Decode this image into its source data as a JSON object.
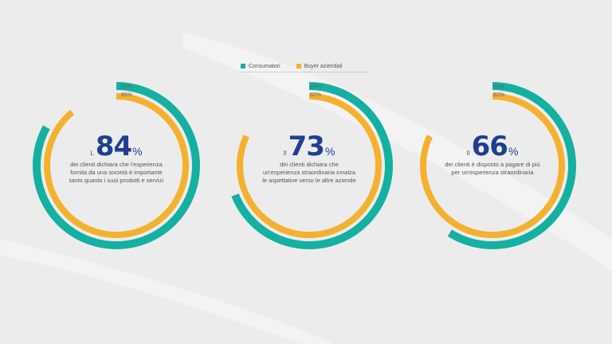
{
  "colors": {
    "teal": "#14b0a2",
    "orange": "#f4b12e",
    "blue": "#1f3f8f"
  },
  "legend": {
    "consumers": "Consumatori",
    "business": "Buyer aziendali"
  },
  "chart_data": [
    {
      "type": "radial-bar",
      "big_value": "84",
      "prefix": "L",
      "percent_sign": "%",
      "description": "dei clienti dichiara che l'esperienza fornita da una società è importante tanto quanto i suoi prodotti e servizi",
      "series": [
        {
          "name": "Consumatori",
          "value": 83,
          "label": "83%"
        },
        {
          "name": "Buyer aziendali",
          "value": 89,
          "label": "89%"
        }
      ]
    },
    {
      "type": "radial-bar",
      "big_value": "73",
      "prefix": "Il",
      "percent_sign": "%",
      "description": "dei clienti dichiara che un'esperienza straordinaria innalza le aspettative verso le altre aziende",
      "series": [
        {
          "name": "Consumatori",
          "value": 69,
          "label": "69%"
        },
        {
          "name": "Buyer aziendali",
          "value": 82,
          "label": "82%"
        }
      ]
    },
    {
      "type": "radial-bar",
      "big_value": "66",
      "prefix": "Il",
      "percent_sign": "%",
      "description": "dei clienti è disposto a pagare di più per un'esperienza straordinaria",
      "series": [
        {
          "name": "Consumatori",
          "value": 59,
          "label": "59%"
        },
        {
          "name": "Buyer aziendali",
          "value": 82,
          "label": "82%"
        }
      ]
    }
  ]
}
